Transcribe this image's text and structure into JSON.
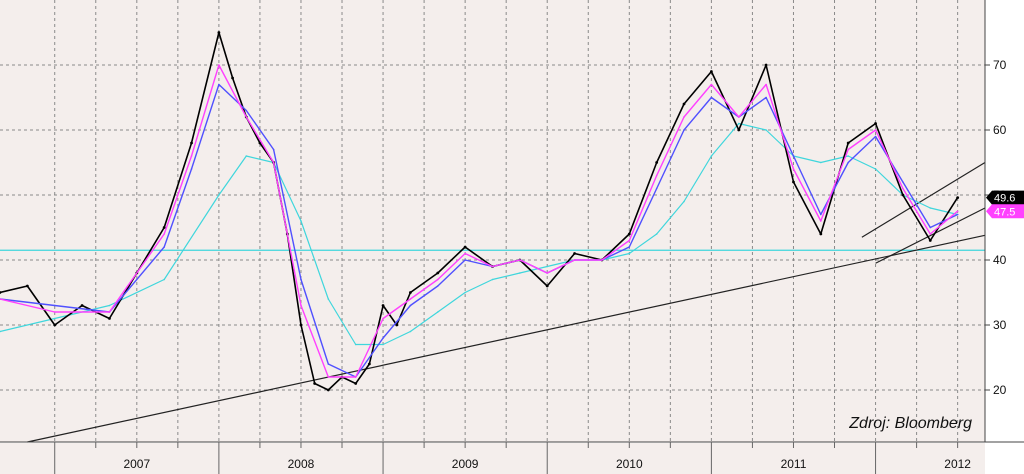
{
  "chart_data": {
    "type": "line",
    "source_note": "Zdroj: Bloomberg",
    "x_ticks": [
      "2007",
      "2008",
      "2009",
      "2010",
      "2011",
      "2012"
    ],
    "y_ticks": [
      20,
      30,
      40,
      50,
      60,
      70
    ],
    "ylim": [
      12,
      80
    ],
    "xlim": [
      "2006-09",
      "2012-09"
    ],
    "grid": true,
    "price_labels": [
      {
        "text": "49.6",
        "value": 49.6,
        "color": "#000000"
      },
      {
        "text": "47.5",
        "value": 47.5,
        "color": "#ff40ff"
      }
    ],
    "horizontal_line": {
      "value": 41.5,
      "color": "#3fd6dc"
    },
    "series": [
      {
        "role": "price",
        "color": "#000000",
        "x": [
          "2006-09",
          "2006-11",
          "2007-01",
          "2007-03",
          "2007-05",
          "2007-07",
          "2007-09",
          "2007-11",
          "2008-01",
          "2008-02",
          "2008-03",
          "2008-04",
          "2008-05",
          "2008-06",
          "2008-07",
          "2008-08",
          "2008-09",
          "2008-10",
          "2008-11",
          "2008-12",
          "2009-01",
          "2009-02",
          "2009-03",
          "2009-05",
          "2009-07",
          "2009-09",
          "2009-11",
          "2010-01",
          "2010-03",
          "2010-05",
          "2010-07",
          "2010-09",
          "2010-11",
          "2011-01",
          "2011-03",
          "2011-05",
          "2011-07",
          "2011-09",
          "2011-11",
          "2012-01",
          "2012-03",
          "2012-05",
          "2012-07"
        ],
        "values": [
          35,
          36,
          30,
          33,
          31,
          38,
          45,
          58,
          75,
          68,
          62,
          58,
          55,
          44,
          30,
          21,
          20,
          22,
          21,
          24,
          33,
          30,
          35,
          38,
          42,
          39,
          40,
          36,
          41,
          40,
          44,
          55,
          64,
          69,
          60,
          70,
          52,
          44,
          58,
          61,
          50,
          43,
          49.6
        ]
      },
      {
        "role": "short-ma",
        "color": "#ff40ff",
        "x": [
          "2006-09",
          "2007-01",
          "2007-05",
          "2007-09",
          "2007-11",
          "2008-01",
          "2008-03",
          "2008-05",
          "2008-07",
          "2008-09",
          "2008-11",
          "2009-01",
          "2009-03",
          "2009-05",
          "2009-07",
          "2009-09",
          "2009-11",
          "2010-01",
          "2010-03",
          "2010-05",
          "2010-07",
          "2010-09",
          "2010-11",
          "2011-01",
          "2011-03",
          "2011-05",
          "2011-07",
          "2011-09",
          "2011-11",
          "2012-01",
          "2012-03",
          "2012-05",
          "2012-07"
        ],
        "values": [
          34,
          32,
          32,
          44,
          56,
          70,
          62,
          55,
          33,
          22,
          22,
          31,
          34,
          37,
          41,
          39,
          40,
          38,
          40,
          40,
          43,
          53,
          62,
          67,
          62,
          67,
          54,
          46,
          57,
          60,
          51,
          44,
          47.5
        ]
      },
      {
        "role": "medium-ma",
        "color": "#5050ff",
        "x": [
          "2006-09",
          "2007-01",
          "2007-05",
          "2007-09",
          "2007-11",
          "2008-01",
          "2008-03",
          "2008-05",
          "2008-07",
          "2008-09",
          "2008-11",
          "2009-01",
          "2009-03",
          "2009-05",
          "2009-07",
          "2009-09",
          "2009-11",
          "2010-01",
          "2010-03",
          "2010-05",
          "2010-07",
          "2010-09",
          "2010-11",
          "2011-01",
          "2011-03",
          "2011-05",
          "2011-07",
          "2011-09",
          "2011-11",
          "2012-01",
          "2012-03",
          "2012-05",
          "2012-07"
        ],
        "values": [
          34,
          33,
          32,
          42,
          54,
          67,
          63,
          57,
          37,
          24,
          22,
          28,
          33,
          36,
          40,
          39,
          40,
          38,
          40,
          40,
          42,
          51,
          60,
          65,
          62,
          65,
          56,
          47,
          55,
          59,
          52,
          45,
          47
        ]
      },
      {
        "role": "long-ma",
        "color": "#3fd6dc",
        "x": [
          "2006-09",
          "2007-01",
          "2007-05",
          "2007-09",
          "2008-01",
          "2008-03",
          "2008-05",
          "2008-07",
          "2008-09",
          "2008-11",
          "2009-01",
          "2009-03",
          "2009-05",
          "2009-07",
          "2009-09",
          "2009-11",
          "2010-01",
          "2010-03",
          "2010-05",
          "2010-07",
          "2010-09",
          "2010-11",
          "2011-01",
          "2011-03",
          "2011-05",
          "2011-07",
          "2011-09",
          "2011-11",
          "2012-01",
          "2012-03",
          "2012-05",
          "2012-07"
        ],
        "values": [
          29,
          31,
          33,
          37,
          50,
          56,
          55,
          46,
          34,
          27,
          27,
          29,
          32,
          35,
          37,
          38,
          39,
          40,
          40,
          41,
          44,
          49,
          56,
          61,
          60,
          56,
          55,
          56,
          54,
          50,
          48,
          47
        ]
      }
    ],
    "trendlines": [
      {
        "x": [
          "2006-11",
          "2012-09"
        ],
        "values": [
          12,
          43.8
        ]
      },
      {
        "x": [
          "2011-12",
          "2012-09"
        ],
        "values": [
          43.5,
          55
        ]
      },
      {
        "x": [
          "2012-01",
          "2012-09"
        ],
        "values": [
          39.5,
          48
        ]
      }
    ]
  }
}
